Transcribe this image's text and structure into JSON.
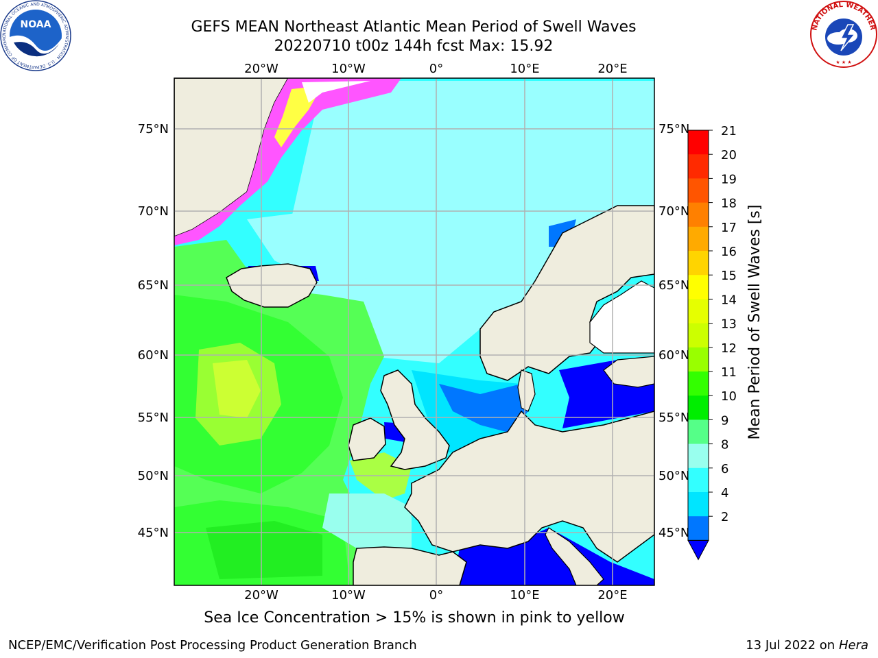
{
  "header": {
    "title_line1": "GEFS MEAN Northeast Atlantic Mean Period of Swell Waves",
    "title_line2": "20220710 t00z 144h fcst   Max: 15.92"
  },
  "logos": {
    "left": "NOAA",
    "left_ring": "NATIONAL OCEANIC AND ATMOSPHERIC ADMINISTRATION · U.S. DEPARTMENT OF COMMERCE",
    "right_ring": "NATIONAL WEATHER SERVICE"
  },
  "map": {
    "lon_labels": [
      "20°W",
      "10°W",
      "0°",
      "10°E",
      "20°E"
    ],
    "lat_labels": [
      "75°N",
      "70°N",
      "65°N",
      "60°N",
      "55°N",
      "50°N",
      "45°N"
    ],
    "ice_note": "Sea Ice Concentration > 15% is shown in pink to yellow"
  },
  "colorbar": {
    "label": "Mean Period of Swell Waves [s]",
    "ticks": [
      "21",
      "20",
      "19",
      "18",
      "17",
      "16",
      "15",
      "14",
      "13",
      "12",
      "11",
      "10",
      "9",
      "8",
      "6",
      "4",
      "2"
    ],
    "colors": [
      "#ff0000",
      "#ff2a00",
      "#ff5500",
      "#ff8000",
      "#ffaa00",
      "#ffd400",
      "#ffff00",
      "#e6ff00",
      "#ccff00",
      "#99ff00",
      "#33ff00",
      "#00ee00",
      "#55ff88",
      "#99ffee",
      "#33ffff",
      "#00e5ff",
      "#0077ff"
    ],
    "extend_color": "#0000ff"
  },
  "palette": {
    "land": "#efedde",
    "deep_blue": "#0000ff",
    "light_cyan": "#99ffff",
    "cyan": "#33ffff",
    "green": "#33ff33",
    "mid_green": "#55ff55",
    "yellow_green": "#ccff33",
    "ice_pink": "#ff55ff",
    "ice_yellow": "#ffff44",
    "grid": "#b0b0b0"
  },
  "footer": {
    "left": "NCEP/EMC/Verification Post Processing Product Generation Branch",
    "right_date": "13 Jul 2022 on",
    "right_machine": "Hera"
  }
}
